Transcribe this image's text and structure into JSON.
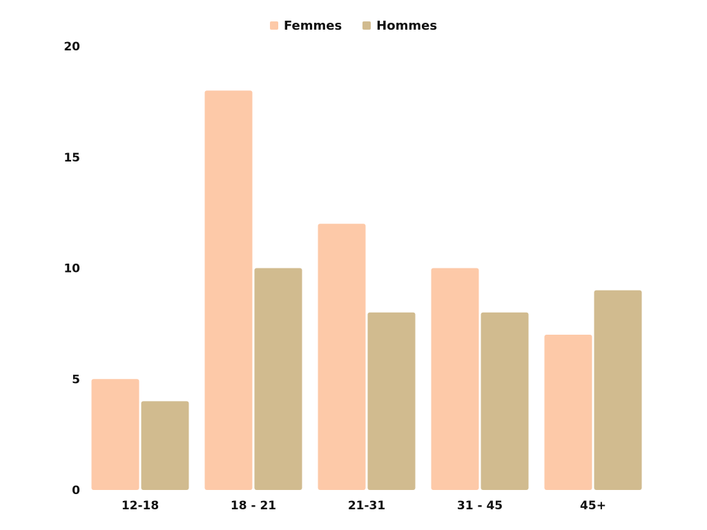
{
  "chart_data": {
    "type": "bar",
    "title": "",
    "xlabel": "",
    "ylabel": "",
    "categories": [
      "12-18",
      "18 - 21",
      "21-31",
      "31 - 45",
      "45+"
    ],
    "series": [
      {
        "name": "Femmes",
        "values": [
          5,
          18,
          12,
          10,
          7
        ],
        "color": "#FDC9A8"
      },
      {
        "name": "Hommes",
        "values": [
          4,
          10,
          8,
          8,
          9
        ],
        "color": "#D1BB8F"
      }
    ],
    "ylim": [
      0,
      20
    ],
    "yticks": [
      0,
      5,
      10,
      15,
      20
    ],
    "grid": false,
    "legend_position": "top-center"
  }
}
